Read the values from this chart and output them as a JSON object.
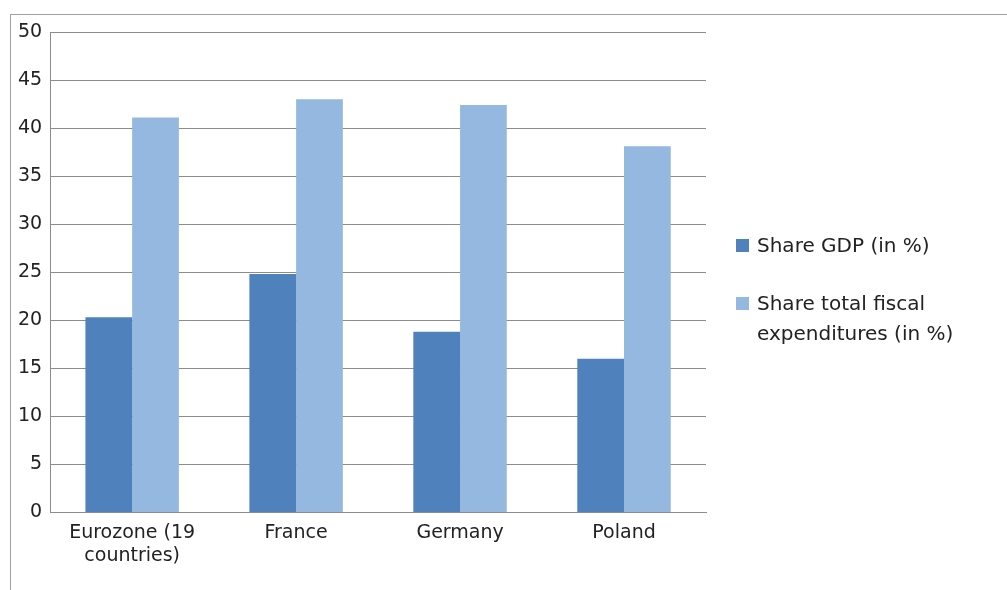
{
  "chart_data": {
    "type": "bar",
    "categories": [
      "Eurozone (19 countries)",
      "France",
      "Germany",
      "Poland"
    ],
    "series": [
      {
        "name": "Share GDP (in %)",
        "color": "#4f81bd",
        "values": [
          20.3,
          24.8,
          18.8,
          16.0
        ]
      },
      {
        "name": "Share total fiscal expenditures (in %)",
        "color": "#95b8e0",
        "values": [
          41.1,
          43.0,
          42.4,
          38.1
        ]
      }
    ],
    "ylim": [
      0,
      50
    ],
    "yticks": [
      0,
      5,
      10,
      15,
      20,
      25,
      30,
      35,
      40,
      45,
      50
    ],
    "grid": "y",
    "legend": "right"
  }
}
